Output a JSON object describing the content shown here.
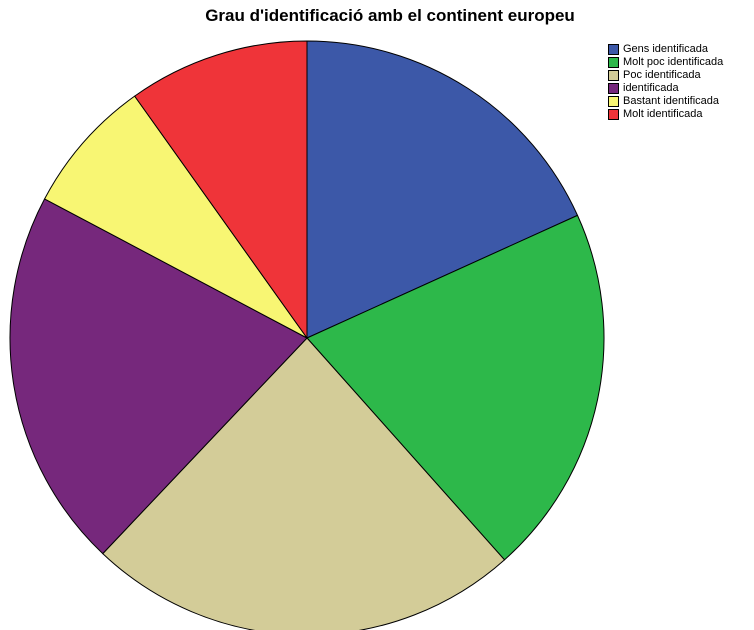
{
  "chart_data": {
    "type": "pie",
    "title": "Grau d'identificació amb el continent europeu",
    "legend_position": "top-right",
    "categories": [
      "Gens identificada",
      "Molt poc identificada",
      "Poc identificada",
      "identificada",
      "Bastant identificada",
      "Molt identificada"
    ],
    "values": [
      18.5,
      20.5,
      24.0,
      21.0,
      7.5,
      10.0
    ],
    "colors": [
      "#3c58a8",
      "#2db84a",
      "#d3cc98",
      "#76287c",
      "#f8f673",
      "#ef3439"
    ],
    "start_angle_deg": 0,
    "direction": "clockwise"
  }
}
